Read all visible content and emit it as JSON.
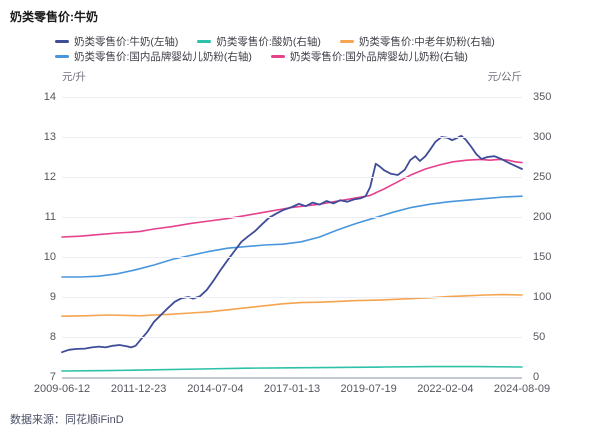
{
  "title": "奶类零售价:牛奶",
  "footer": "数据来源：同花顺iFinD",
  "legend": {
    "rows": [
      [
        {
          "label": "奶类零售价:牛奶(左轴)",
          "color": "#3f4c98"
        },
        {
          "label": "奶类零售价:酸奶(右轴)",
          "color": "#2dc1a8"
        },
        {
          "label": "奶类零售价:中老年奶粉(右轴)",
          "color": "#f5a44f"
        }
      ],
      [
        {
          "label": "奶类零售价:国内品牌婴幼儿奶粉(右轴)",
          "color": "#4896dc"
        },
        {
          "label": "奶类零售价:国外品牌婴幼儿奶粉(右轴)",
          "color": "#e6418d"
        }
      ]
    ]
  },
  "left_axis": {
    "unit": "元/升",
    "ticks": [
      14,
      13,
      12,
      11,
      10,
      9,
      8,
      7
    ]
  },
  "right_axis": {
    "unit": "元/公斤",
    "ticks": [
      350,
      300,
      250,
      200,
      150,
      100,
      50,
      0
    ]
  },
  "x_axis": {
    "labels": [
      "2009-06-12",
      "2011-12-23",
      "2014-07-04",
      "2017-01-13",
      "2019-07-19",
      "2022-02-04",
      "2024-08-09"
    ]
  },
  "colors": {
    "milk": "#3f4c98",
    "yogurt": "#2dc1a8",
    "senior_powder": "#f5a44f",
    "domestic_infant_powder": "#4896dc",
    "foreign_infant_powder": "#e6418d",
    "gridline": "#ededf4",
    "axis_line": "#c3c7d2"
  },
  "chart_data": {
    "type": "line",
    "title": "奶类零售价:牛奶",
    "x_range": [
      "2009-06-12",
      "2024-08-09"
    ],
    "left_ylim": [
      7,
      14
    ],
    "right_ylim": [
      0,
      350
    ],
    "left_unit": "元/升",
    "right_unit": "元/公斤",
    "grid": true,
    "legend_position": "top",
    "series": [
      {
        "id": "yogurt",
        "name": "奶类零售价:酸奶(右轴)",
        "axis": "right",
        "unit": "元/公斤",
        "color": "#2dc1a8",
        "width": 1.6,
        "points": [
          [
            0,
            7.5
          ],
          [
            0.1,
            8
          ],
          [
            0.2,
            9
          ],
          [
            0.3,
            10
          ],
          [
            0.4,
            11
          ],
          [
            0.5,
            11.5
          ],
          [
            0.6,
            12
          ],
          [
            0.7,
            12.5
          ],
          [
            0.8,
            13
          ],
          [
            0.9,
            13
          ],
          [
            1,
            12.5
          ]
        ]
      },
      {
        "id": "senior-powder",
        "name": "奶类零售价:中老年奶粉(右轴)",
        "axis": "right",
        "unit": "元/公斤",
        "color": "#f5a44f",
        "width": 1.6,
        "points": [
          [
            0,
            76
          ],
          [
            0.05,
            76.5
          ],
          [
            0.1,
            77.5
          ],
          [
            0.14,
            77
          ],
          [
            0.17,
            76.5
          ],
          [
            0.2,
            77.5
          ],
          [
            0.24,
            78.5
          ],
          [
            0.28,
            80
          ],
          [
            0.32,
            81.5
          ],
          [
            0.36,
            84
          ],
          [
            0.4,
            86.5
          ],
          [
            0.44,
            89
          ],
          [
            0.48,
            91.5
          ],
          [
            0.52,
            93
          ],
          [
            0.56,
            93.5
          ],
          [
            0.6,
            94.5
          ],
          [
            0.64,
            95.5
          ],
          [
            0.68,
            96
          ],
          [
            0.72,
            97
          ],
          [
            0.76,
            98
          ],
          [
            0.8,
            99
          ],
          [
            0.84,
            100.5
          ],
          [
            0.88,
            101.5
          ],
          [
            0.92,
            102.5
          ],
          [
            0.96,
            103
          ],
          [
            1,
            102.5
          ]
        ]
      },
      {
        "id": "domestic-infant",
        "name": "奶类零售价:国内品牌婴幼儿奶粉(右轴)",
        "axis": "right",
        "unit": "元/公斤",
        "color": "#4896dc",
        "width": 1.6,
        "points": [
          [
            0,
            125
          ],
          [
            0.04,
            125
          ],
          [
            0.08,
            126
          ],
          [
            0.12,
            129
          ],
          [
            0.16,
            134
          ],
          [
            0.2,
            140
          ],
          [
            0.24,
            147
          ],
          [
            0.28,
            152
          ],
          [
            0.32,
            157
          ],
          [
            0.36,
            161
          ],
          [
            0.4,
            163
          ],
          [
            0.44,
            165
          ],
          [
            0.48,
            166
          ],
          [
            0.52,
            169
          ],
          [
            0.56,
            175
          ],
          [
            0.6,
            184
          ],
          [
            0.64,
            192
          ],
          [
            0.68,
            199
          ],
          [
            0.72,
            206
          ],
          [
            0.76,
            212
          ],
          [
            0.8,
            216
          ],
          [
            0.84,
            219
          ],
          [
            0.88,
            221
          ],
          [
            0.92,
            223
          ],
          [
            0.96,
            225
          ],
          [
            1,
            226
          ]
        ]
      },
      {
        "id": "foreign-infant",
        "name": "奶类零售价:国外品牌婴幼儿奶粉(右轴)",
        "axis": "right",
        "unit": "元/公斤",
        "color": "#e6418d",
        "width": 1.6,
        "points": [
          [
            0,
            175
          ],
          [
            0.04,
            176
          ],
          [
            0.08,
            178
          ],
          [
            0.12,
            180
          ],
          [
            0.15,
            181
          ],
          [
            0.17,
            182
          ],
          [
            0.2,
            185
          ],
          [
            0.24,
            188
          ],
          [
            0.28,
            192
          ],
          [
            0.32,
            195
          ],
          [
            0.36,
            198
          ],
          [
            0.4,
            202
          ],
          [
            0.44,
            206
          ],
          [
            0.48,
            210
          ],
          [
            0.5,
            212
          ],
          [
            0.53,
            214
          ],
          [
            0.56,
            216
          ],
          [
            0.59,
            219
          ],
          [
            0.62,
            222
          ],
          [
            0.65,
            225
          ],
          [
            0.67,
            227
          ],
          [
            0.7,
            235
          ],
          [
            0.73,
            244
          ],
          [
            0.76,
            253
          ],
          [
            0.79,
            260
          ],
          [
            0.82,
            265
          ],
          [
            0.85,
            269
          ],
          [
            0.88,
            271
          ],
          [
            0.91,
            272
          ],
          [
            0.93,
            271
          ],
          [
            0.95,
            272
          ],
          [
            0.97,
            271
          ],
          [
            0.985,
            269
          ],
          [
            1,
            268
          ]
        ]
      },
      {
        "id": "milk",
        "name": "奶类零售价:牛奶(左轴)",
        "axis": "left",
        "unit": "元/升",
        "color": "#3f4c98",
        "width": 1.8,
        "points": [
          [
            0,
            7.62
          ],
          [
            0.015,
            7.68
          ],
          [
            0.03,
            7.7
          ],
          [
            0.05,
            7.71
          ],
          [
            0.065,
            7.74
          ],
          [
            0.08,
            7.76
          ],
          [
            0.095,
            7.74
          ],
          [
            0.11,
            7.78
          ],
          [
            0.125,
            7.8
          ],
          [
            0.14,
            7.77
          ],
          [
            0.15,
            7.74
          ],
          [
            0.16,
            7.78
          ],
          [
            0.17,
            7.92
          ],
          [
            0.185,
            8.12
          ],
          [
            0.2,
            8.38
          ],
          [
            0.215,
            8.55
          ],
          [
            0.23,
            8.72
          ],
          [
            0.245,
            8.88
          ],
          [
            0.26,
            8.97
          ],
          [
            0.275,
            9.0
          ],
          [
            0.285,
            8.96
          ],
          [
            0.3,
            9.02
          ],
          [
            0.315,
            9.18
          ],
          [
            0.33,
            9.42
          ],
          [
            0.345,
            9.68
          ],
          [
            0.36,
            9.92
          ],
          [
            0.375,
            10.15
          ],
          [
            0.39,
            10.38
          ],
          [
            0.405,
            10.52
          ],
          [
            0.42,
            10.65
          ],
          [
            0.435,
            10.82
          ],
          [
            0.45,
            10.98
          ],
          [
            0.465,
            11.08
          ],
          [
            0.48,
            11.17
          ],
          [
            0.5,
            11.25
          ],
          [
            0.515,
            11.33
          ],
          [
            0.53,
            11.27
          ],
          [
            0.545,
            11.36
          ],
          [
            0.56,
            11.31
          ],
          [
            0.575,
            11.4
          ],
          [
            0.59,
            11.34
          ],
          [
            0.605,
            11.42
          ],
          [
            0.62,
            11.38
          ],
          [
            0.635,
            11.44
          ],
          [
            0.65,
            11.47
          ],
          [
            0.66,
            11.52
          ],
          [
            0.67,
            11.75
          ],
          [
            0.682,
            12.33
          ],
          [
            0.69,
            12.27
          ],
          [
            0.7,
            12.17
          ],
          [
            0.715,
            12.08
          ],
          [
            0.73,
            12.05
          ],
          [
            0.745,
            12.18
          ],
          [
            0.757,
            12.42
          ],
          [
            0.768,
            12.52
          ],
          [
            0.778,
            12.4
          ],
          [
            0.79,
            12.52
          ],
          [
            0.8,
            12.68
          ],
          [
            0.812,
            12.88
          ],
          [
            0.825,
            13.0
          ],
          [
            0.838,
            12.98
          ],
          [
            0.848,
            12.92
          ],
          [
            0.858,
            12.97
          ],
          [
            0.868,
            13.03
          ],
          [
            0.878,
            12.93
          ],
          [
            0.89,
            12.75
          ],
          [
            0.9,
            12.58
          ],
          [
            0.912,
            12.45
          ],
          [
            0.925,
            12.5
          ],
          [
            0.94,
            12.52
          ],
          [
            0.955,
            12.45
          ],
          [
            0.97,
            12.36
          ],
          [
            0.985,
            12.28
          ],
          [
            1,
            12.2
          ]
        ]
      }
    ]
  }
}
